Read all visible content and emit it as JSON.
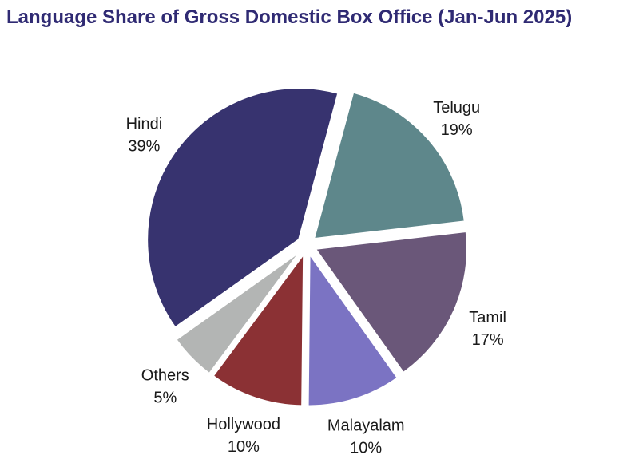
{
  "chart_data": {
    "type": "pie",
    "title": "Language Share of Gross Domestic Box Office (Jan-Jun 2025)",
    "start_angle_deg": 15,
    "direction": "clockwise",
    "exploded": true,
    "slices": [
      {
        "label": "Telugu",
        "value": 19,
        "value_text": "19%",
        "color": "#5e878b"
      },
      {
        "label": "Tamil",
        "value": 17,
        "value_text": "17%",
        "color": "#6a5779"
      },
      {
        "label": "Malayalam",
        "value": 10,
        "value_text": "10%",
        "color": "#7b73c3"
      },
      {
        "label": "Hollywood",
        "value": 10,
        "value_text": "10%",
        "color": "#8b3134"
      },
      {
        "label": "Others",
        "value": 5,
        "value_text": "5%",
        "color": "#b3b5b4"
      },
      {
        "label": "Hindi",
        "value": 39,
        "value_text": "39%",
        "color": "#37336f"
      }
    ]
  }
}
